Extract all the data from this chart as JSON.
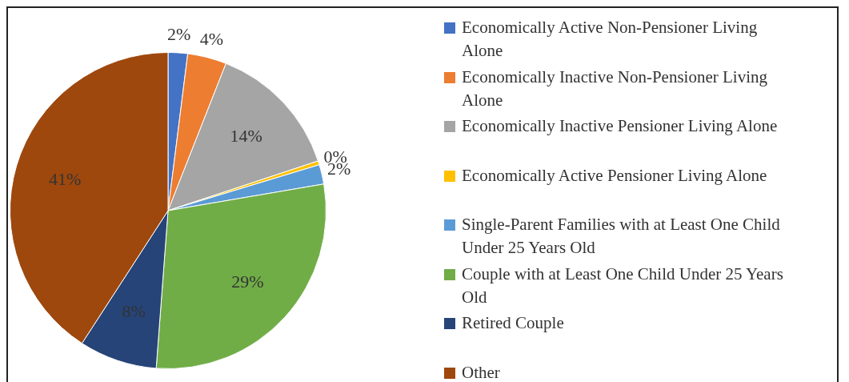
{
  "chart_data": {
    "type": "pie",
    "categories": [
      "Economically Active Non-Pensioner Living Alone",
      "Economically Inactive Non-Pensioner Living Alone",
      "Economically Inactive Pensioner Living Alone",
      "Economically Active Pensioner Living Alone",
      "Single-Parent Families with at Least One Child Under 25 Years Old",
      "Couple with at Least One Child Under 25 Years Old",
      "Retired Couple",
      "Other"
    ],
    "values": [
      2,
      4,
      14,
      0.4,
      2,
      29,
      8,
      41
    ],
    "value_labels": [
      "2%",
      "4%",
      "14%",
      "0%",
      "2%",
      "29%",
      "8%",
      "41%"
    ],
    "colors": [
      "#4472c4",
      "#ed7d31",
      "#a5a5a5",
      "#ffc000",
      "#5b9bd5",
      "#70ad47",
      "#264478",
      "#9e480e"
    ],
    "legend": "right"
  }
}
